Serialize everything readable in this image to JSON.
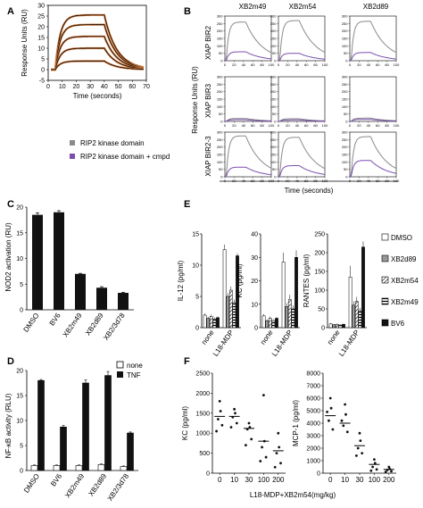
{
  "colors": {
    "gray": "#8a8a8a",
    "purple": "#7a4fb0",
    "black": "#111111",
    "white": "#ffffff",
    "sensor": "#c8753a"
  },
  "panels": {
    "A": "A",
    "B": "B",
    "C": "C",
    "D": "D",
    "E": "E",
    "F": "F"
  },
  "chart_data": [
    {
      "id": "A",
      "type": "line",
      "xlabel": "Time (seconds)",
      "ylabel": "Response Units (RU)",
      "xlim": [
        0,
        70
      ],
      "ylim": [
        -5,
        30
      ],
      "xticks": [
        "0",
        "10",
        "20",
        "30",
        "40",
        "50",
        "60",
        "70"
      ],
      "yticks": [
        "-5",
        "0",
        "5",
        "10",
        "15",
        "20",
        "25",
        "30"
      ],
      "association_end": 40,
      "series": [
        {
          "plateau": 25.5
        },
        {
          "plateau": 21
        },
        {
          "plateau": 15.5
        },
        {
          "plateau": 10
        },
        {
          "plateau": 4
        }
      ]
    },
    {
      "id": "B",
      "type": "line",
      "columns": [
        "XB2m49",
        "XB2m54",
        "XB2d89"
      ],
      "rows": [
        "XIAP BIR2",
        "XIAP BIR3",
        "XIAP BIR2-3"
      ],
      "xlabel": "Time (seconds)",
      "ylabel": "Response Units (RU)",
      "xlim": [
        0,
        100
      ],
      "ylim": [
        0,
        300
      ],
      "xticks": [
        "0",
        "20",
        "40",
        "60",
        "80",
        "100"
      ],
      "yticks": [
        "0",
        "50",
        "100",
        "150",
        "200",
        "250",
        "300"
      ],
      "association_end": 45,
      "legend": [
        "RIP2 kinase domain",
        "RIP2 kinase domain + cmpd"
      ],
      "cells": [
        [
          {
            "gray": 260,
            "purple": 60
          },
          {
            "gray": 270,
            "purple": 50
          },
          {
            "gray": 265,
            "purple": 55
          }
        ],
        [
          {
            "gray": 20,
            "purple": 12
          },
          {
            "gray": 18,
            "purple": 10
          },
          {
            "gray": 22,
            "purple": 14
          }
        ],
        [
          {
            "gray": 275,
            "purple": 65
          },
          {
            "gray": 265,
            "purple": 75
          },
          {
            "gray": 270,
            "purple": 110
          }
        ]
      ]
    },
    {
      "id": "C",
      "type": "bar",
      "ylabel": "NOD2 activation (RU)",
      "ylim": [
        0,
        20
      ],
      "yticks": [
        "0",
        "5",
        "10",
        "15",
        "20"
      ],
      "categories": [
        "DMSO",
        "BV6",
        "XB2m49",
        "XB2d89",
        "XB2/3d78"
      ],
      "values": [
        18.5,
        19,
        7,
        4.3,
        3.3
      ],
      "errors": [
        0.4,
        0.3,
        0.1,
        0.2,
        0.1
      ]
    },
    {
      "id": "D",
      "type": "bar",
      "ylabel": "NF-κB activity (RLU)",
      "ylim": [
        0,
        20
      ],
      "yticks": [
        "0",
        "5",
        "10",
        "15",
        "20"
      ],
      "categories": [
        "DMSO",
        "BV6",
        "XB2m49",
        "XB2d89",
        "XB2/3d78"
      ],
      "legend": [
        "none",
        "TNF"
      ],
      "series": [
        {
          "name": "none",
          "values": [
            1.0,
            1.0,
            1.0,
            1.2,
            0.8
          ],
          "errors": [
            0.1,
            0.1,
            0.1,
            0.1,
            0.1
          ]
        },
        {
          "name": "TNF",
          "values": [
            18,
            8.7,
            17.5,
            19,
            7.5
          ],
          "errors": [
            0.2,
            0.3,
            0.6,
            0.8,
            0.2
          ]
        }
      ]
    },
    {
      "id": "E",
      "type": "bar",
      "legend": [
        "DMSO",
        "XB2d89",
        "XB2m54",
        "XB2m49",
        "BV6"
      ],
      "categories": [
        "none",
        "L18-MDP"
      ],
      "subplots": [
        {
          "ylabel": "IL-12 (pg/ml)",
          "ylim": [
            0,
            15
          ],
          "yticks": [
            "0",
            "5",
            "10",
            "15"
          ],
          "series": [
            [
              2.0,
              12.5
            ],
            [
              1.5,
              5.0
            ],
            [
              1.8,
              6.0
            ],
            [
              1.4,
              4.0
            ],
            [
              1.6,
              11.5
            ]
          ],
          "errors": [
            [
              0.3,
              0.8
            ],
            [
              0.2,
              0.5
            ],
            [
              0.3,
              0.6
            ],
            [
              0.2,
              0.5
            ],
            [
              0.2,
              0.4
            ]
          ]
        },
        {
          "ylabel": "KC (pg/ml)",
          "ylim": [
            0,
            40
          ],
          "yticks": [
            "0",
            "10",
            "20",
            "30",
            "40"
          ],
          "series": [
            [
              5,
              28
            ],
            [
              3,
              9
            ],
            [
              4,
              12
            ],
            [
              3,
              8
            ],
            [
              4,
              30
            ]
          ],
          "errors": [
            [
              0.8,
              4
            ],
            [
              0.5,
              1.5
            ],
            [
              0.8,
              2
            ],
            [
              0.5,
              1.5
            ],
            [
              0.5,
              3
            ]
          ]
        },
        {
          "ylabel": "RANTES (pg/ml)",
          "ylim": [
            0,
            250
          ],
          "yticks": [
            "0",
            "50",
            "100",
            "150",
            "200",
            "250"
          ],
          "series": [
            [
              10,
              135
            ],
            [
              8,
              60
            ],
            [
              9,
              70
            ],
            [
              7,
              45
            ],
            [
              9,
              215
            ]
          ],
          "errors": [
            [
              2,
              30
            ],
            [
              2,
              10
            ],
            [
              2,
              12
            ],
            [
              1,
              8
            ],
            [
              2,
              15
            ]
          ]
        }
      ]
    },
    {
      "id": "F",
      "type": "scatter",
      "xlabel": "L18-MDP+XB2m54(mg/kg)",
      "x": [
        "0",
        "10",
        "30",
        "100",
        "200"
      ],
      "subplots": [
        {
          "ylabel": "KC (pg/ml)",
          "ylim": [
            0,
            2500
          ],
          "yticks": [
            "0",
            "500",
            "1000",
            "1500",
            "2000",
            "2500"
          ],
          "means": [
            1420,
            1420,
            1120,
            800,
            560
          ],
          "points": [
            [
              1800,
              1550,
              1350,
              1200,
              1050
            ],
            [
              1600,
              1500,
              1400,
              1250,
              1150
            ],
            [
              1250,
              1150,
              1100,
              850,
              700
            ],
            [
              1950,
              800,
              650,
              400,
              300
            ],
            [
              1000,
              650,
              500,
              250,
              150
            ]
          ]
        },
        {
          "ylabel": "MCP-1 (pg/ml)",
          "ylim": [
            0,
            8000
          ],
          "yticks": [
            "0",
            "1000",
            "2000",
            "3000",
            "4000",
            "5000",
            "6000",
            "7000",
            "8000"
          ],
          "means": [
            4600,
            4000,
            2200,
            700,
            300
          ],
          "points": [
            [
              6000,
              5200,
              4200,
              3500,
              4900
            ],
            [
              5500,
              4700,
              3800,
              3300,
              4200
            ],
            [
              3200,
              2600,
              2000,
              1600,
              1400
            ],
            [
              1100,
              800,
              500,
              300,
              200
            ],
            [
              500,
              350,
              250,
              150,
              100
            ]
          ]
        }
      ]
    }
  ]
}
